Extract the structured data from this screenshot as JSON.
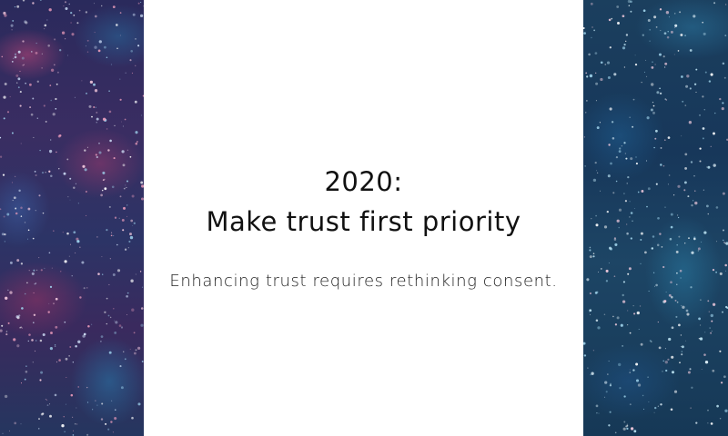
{
  "slide": {
    "title_line_1": "2020:",
    "title_line_2": "Make trust first priority",
    "subtitle": "Enhancing trust requires rethinking consent."
  },
  "colors": {
    "background": "#ffffff",
    "text": "#111111",
    "left_texture": "#2f2d60",
    "right_texture": "#1b3f5e"
  }
}
